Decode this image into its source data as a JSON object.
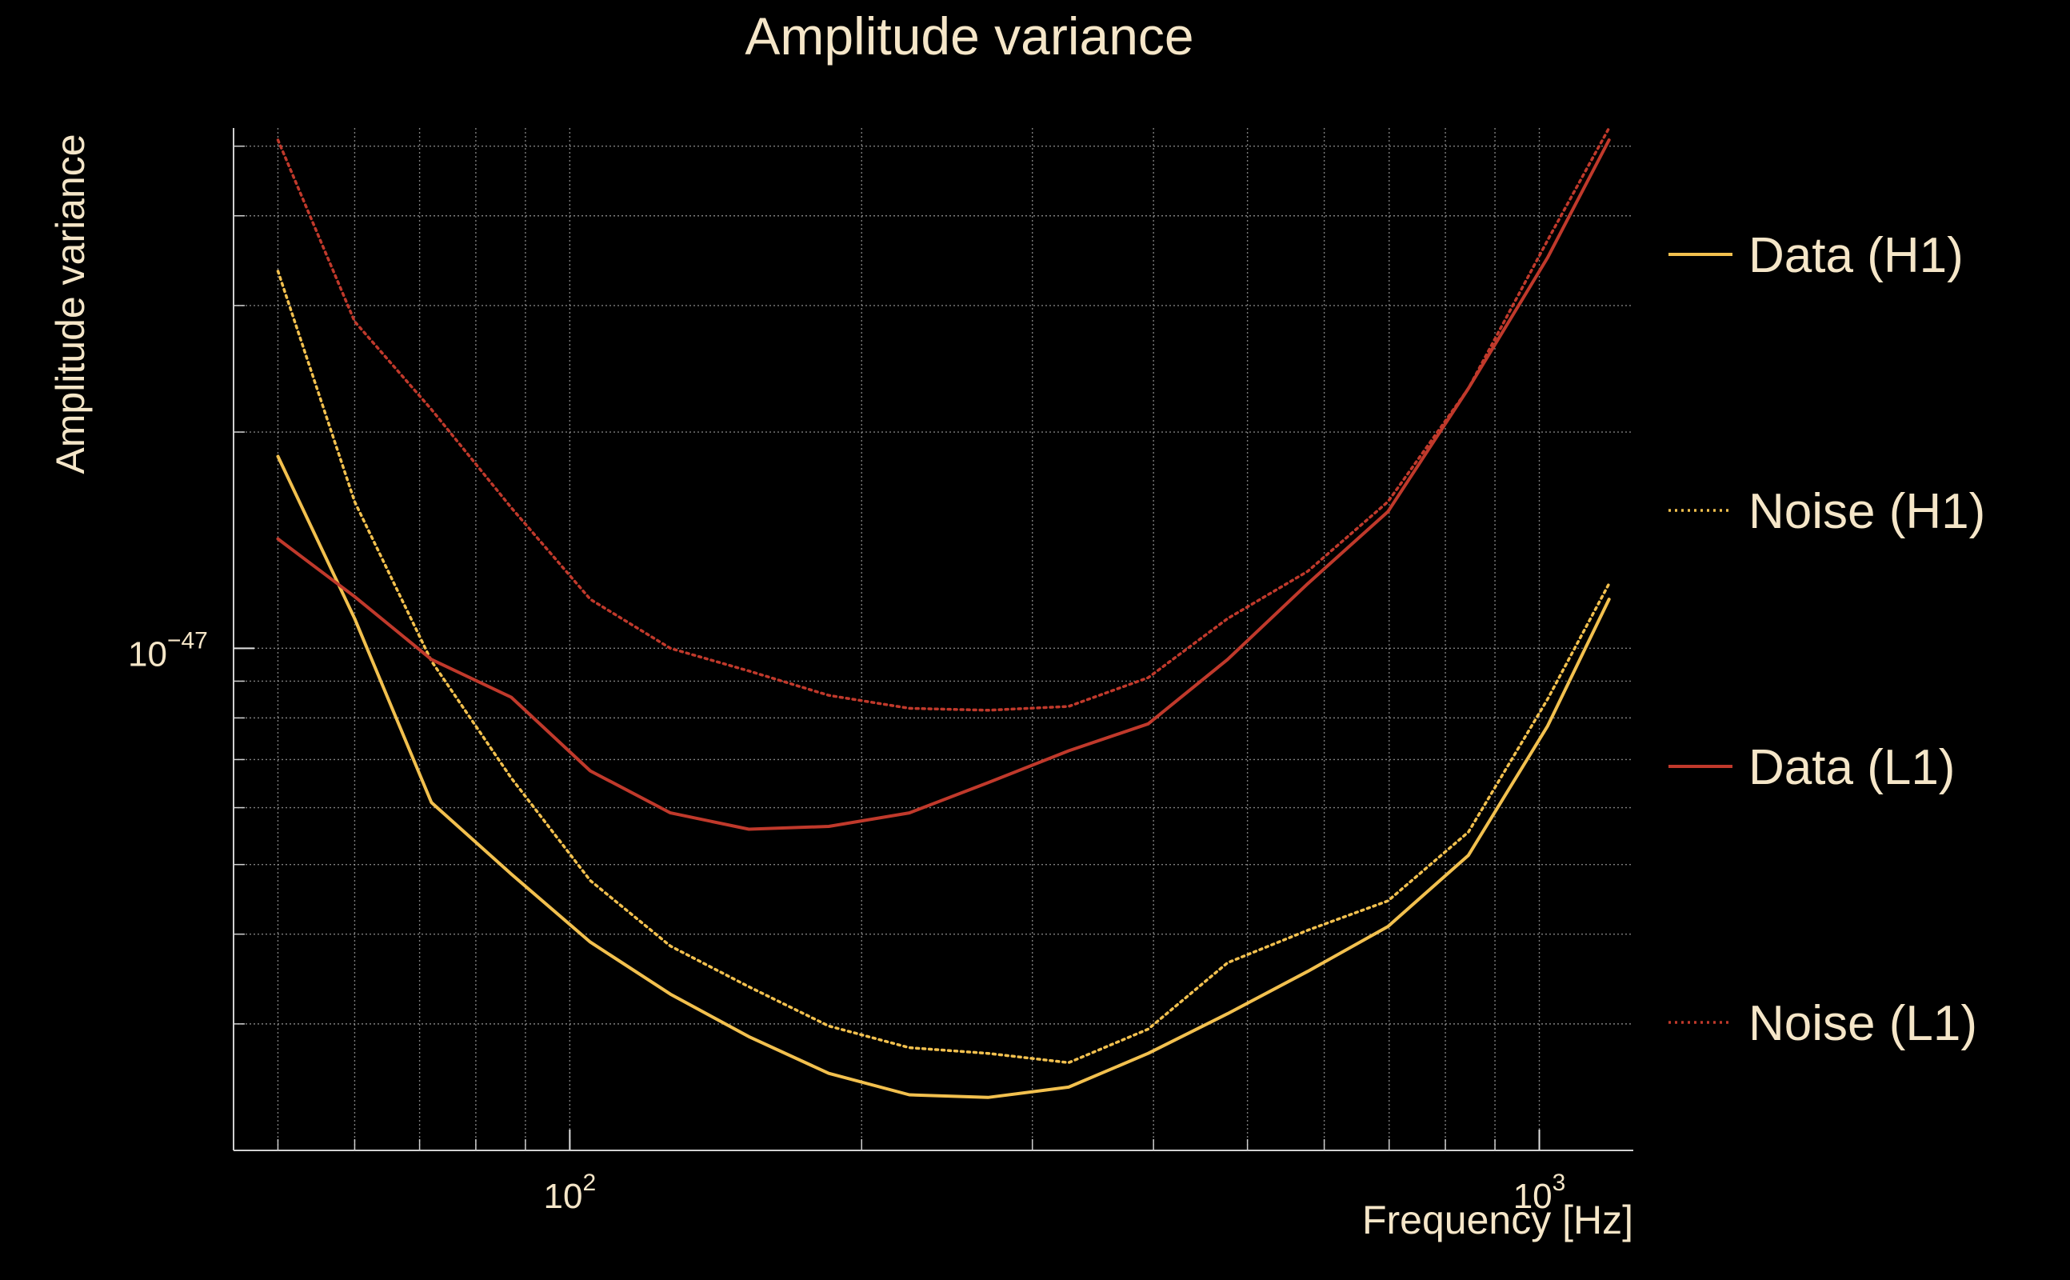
{
  "chart_data": {
    "type": "line",
    "title": "Amplitude variance",
    "xlabel": "Frequency [Hz]",
    "ylabel": "Amplitude variance",
    "xscale": "log",
    "yscale": "log",
    "xlim": [
      45,
      1250
    ],
    "ylim": [
      2e-48,
      5.3e-47
    ],
    "x_ticks": [
      {
        "value": 100,
        "base": "10",
        "exp": "2"
      },
      {
        "value": 1000,
        "base": "10",
        "exp": "3"
      }
    ],
    "y_ticks": [
      {
        "value": 1e-47,
        "base": "10",
        "exp": "−47"
      }
    ],
    "grid": true,
    "legend_position": "right",
    "series": [
      {
        "name": "Data (H1)",
        "color": "#f2c04e",
        "style": "solid",
        "x": [
          50,
          60,
          72,
          87,
          105,
          127,
          153,
          185,
          224,
          270,
          327,
          395,
          477,
          577,
          698,
          845,
          1020,
          1180
        ],
        "y": [
          1.85e-47,
          1.1e-47,
          6.1e-48,
          4.85e-48,
          3.9e-48,
          3.3e-48,
          2.88e-48,
          2.56e-48,
          2.39e-48,
          2.37e-48,
          2.45e-48,
          2.73e-48,
          3.1e-48,
          3.55e-48,
          4.1e-48,
          5.15e-48,
          7.8e-48,
          1.17e-47
        ]
      },
      {
        "name": "Noise (H1)",
        "color": "#f2c04e",
        "style": "dotted",
        "x": [
          50,
          60,
          72,
          87,
          105,
          127,
          153,
          185,
          224,
          270,
          327,
          395,
          477,
          577,
          698,
          845,
          1020,
          1180
        ],
        "y": [
          3.35e-47,
          1.6e-47,
          9.6e-48,
          6.6e-48,
          4.75e-48,
          3.85e-48,
          3.38e-48,
          2.98e-48,
          2.78e-48,
          2.73e-48,
          2.65e-48,
          2.95e-48,
          3.65e-48,
          4.05e-48,
          4.45e-48,
          5.55e-48,
          8.5e-48,
          1.23e-47
        ]
      },
      {
        "name": "Data (L1)",
        "color": "#c0392b",
        "style": "solid",
        "x": [
          50,
          60,
          72,
          87,
          105,
          127,
          153,
          185,
          224,
          270,
          327,
          395,
          477,
          577,
          698,
          845,
          1020,
          1180
        ],
        "y": [
          1.42e-47,
          1.18e-47,
          9.65e-48,
          8.55e-48,
          6.75e-48,
          5.9e-48,
          5.6e-48,
          5.65e-48,
          5.9e-48,
          6.5e-48,
          7.2e-48,
          7.85e-48,
          9.65e-48,
          1.23e-47,
          1.55e-47,
          2.3e-47,
          3.5e-47,
          5.1e-47
        ]
      },
      {
        "name": "Noise (L1)",
        "color": "#c0392b",
        "style": "dotted",
        "x": [
          50,
          60,
          72,
          87,
          105,
          127,
          153,
          185,
          224,
          270,
          327,
          395,
          477,
          577,
          698,
          845,
          1020,
          1180
        ],
        "y": [
          5.1e-47,
          2.85e-47,
          2.15e-47,
          1.57e-47,
          1.17e-47,
          1e-47,
          9.3e-48,
          8.6e-48,
          8.25e-48,
          8.2e-48,
          8.3e-48,
          9.1e-48,
          1.1e-47,
          1.28e-47,
          1.6e-47,
          2.3e-47,
          3.7e-47,
          5.3e-47
        ]
      }
    ]
  }
}
